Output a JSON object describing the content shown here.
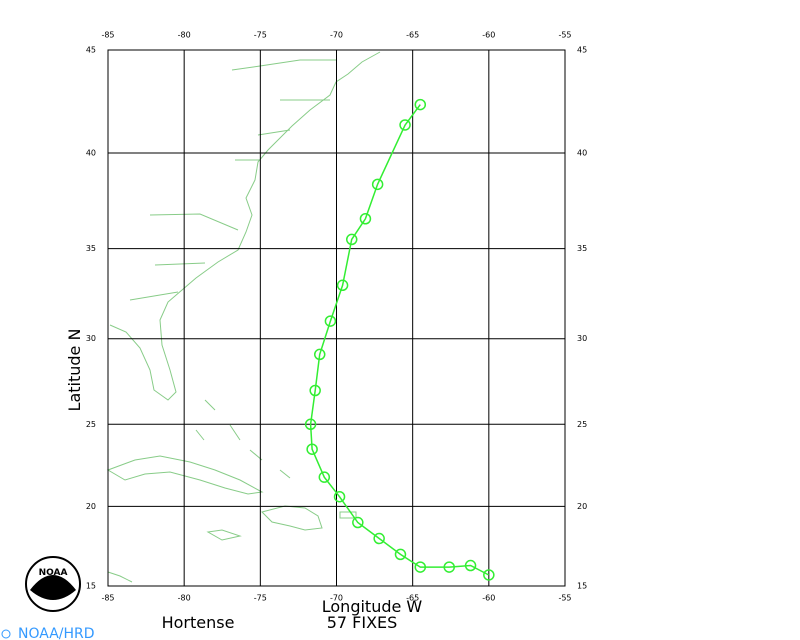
{
  "chart_data": {
    "type": "line",
    "title": "Hortense",
    "subtitle": "57 FIXES",
    "x_label": "Longitude  W",
    "y_label": "Latitude  N",
    "credit": "NOAA/HRD",
    "logo_text": "NOAA",
    "projection": "mercator",
    "grid": true,
    "color": "#33ee33",
    "xlim": [
      -85,
      -55
    ],
    "xticks": [
      -85,
      -80,
      -75,
      -70,
      -65,
      -60,
      -55
    ],
    "ylim": [
      15,
      45
    ],
    "yticks": [
      15,
      20,
      25,
      30,
      35,
      40,
      45
    ],
    "x": [
      -60.0,
      -61.2,
      -62.6,
      -64.5,
      -65.8,
      -67.2,
      -68.6,
      -69.8,
      -70.8,
      -71.6,
      -71.7,
      -71.4,
      -71.1,
      -70.4,
      -69.6,
      -69.0,
      -68.1,
      -67.3,
      -65.5,
      -64.5
    ],
    "values": [
      15.7,
      16.3,
      16.2,
      16.2,
      17.0,
      18.0,
      19.0,
      20.6,
      21.8,
      23.5,
      25.0,
      27.0,
      29.1,
      31.0,
      33.0,
      35.5,
      36.6,
      38.4,
      41.4,
      42.4
    ]
  }
}
